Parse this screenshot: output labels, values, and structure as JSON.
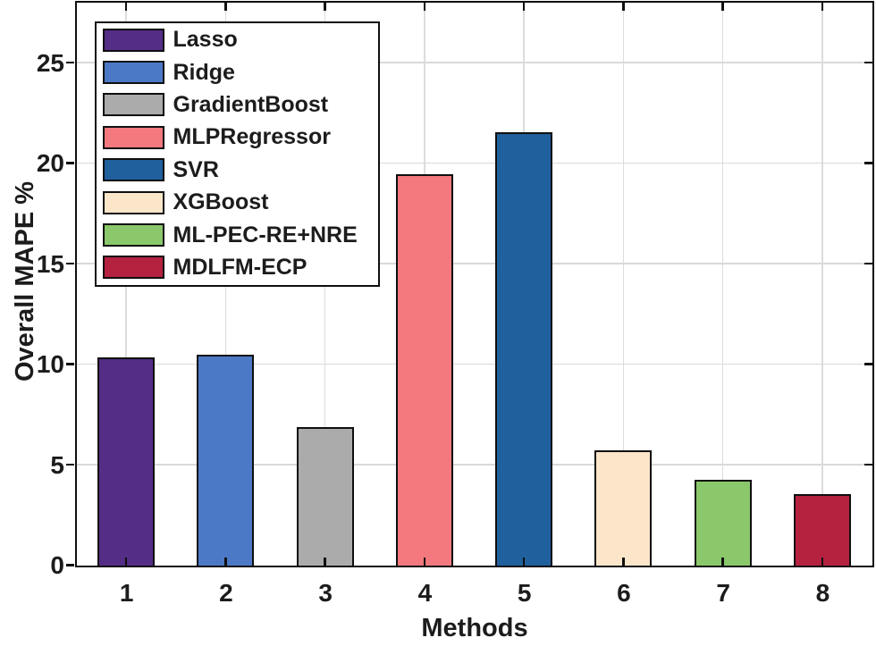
{
  "chart_data": {
    "type": "bar",
    "title": "",
    "xlabel": "Methods",
    "ylabel": "Overall MAPE %",
    "categories": [
      "1",
      "2",
      "3",
      "4",
      "5",
      "6",
      "7",
      "8"
    ],
    "values": [
      10.35,
      10.45,
      6.85,
      19.45,
      21.55,
      5.7,
      4.25,
      3.55
    ],
    "bar_colors": [
      "#542D86",
      "#4C79C6",
      "#ABABAB",
      "#F3797E",
      "#20609C",
      "#FCE6C9",
      "#8AC86B",
      "#B52240"
    ],
    "bar_edge_color": "#0f0f0f",
    "yticks": [
      0,
      5,
      10,
      15,
      20,
      25
    ],
    "ylim": [
      0,
      28
    ],
    "grid": true,
    "grid_color": "#d9d9d9",
    "legend_position": "top-left",
    "legend": {
      "entries": [
        {
          "label": "Lasso",
          "color": "#542D86"
        },
        {
          "label": "Ridge",
          "color": "#4C79C6"
        },
        {
          "label": "GradientBoost",
          "color": "#ABABAB"
        },
        {
          "label": "MLPRegressor",
          "color": "#F3797E"
        },
        {
          "label": "SVR",
          "color": "#20609C"
        },
        {
          "label": "XGBoost",
          "color": "#FCE6C9"
        },
        {
          "label": "ML-PEC-RE+NRE",
          "color": "#8AC86B"
        },
        {
          "label": "MDLFM-ECP",
          "color": "#B52240"
        }
      ]
    }
  }
}
